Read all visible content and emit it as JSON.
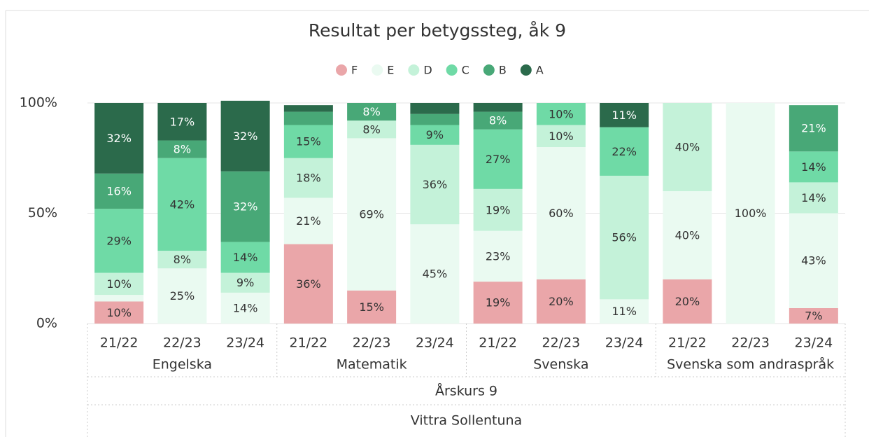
{
  "chart_data": {
    "type": "stacked_bar_100",
    "title": "Resultat per betygssteg, åk 9",
    "categories": [
      "21/22",
      "22/23",
      "23/24",
      "21/22",
      "22/23",
      "23/24",
      "21/22",
      "22/23",
      "23/24",
      "21/22",
      "22/23",
      "23/24"
    ],
    "groups": [
      {
        "label": "Engelska",
        "size": 3
      },
      {
        "label": "Matematik",
        "size": 3
      },
      {
        "label": "Svenska",
        "size": 3
      },
      {
        "label": "Svenska som andraspråk",
        "size": 3
      }
    ],
    "level3": "Årskurs 9",
    "level4": "Vittra Sollentuna",
    "series": [
      {
        "name": "F",
        "color": "#eaa6a9",
        "label_color": "#333333",
        "values": [
          10,
          null,
          null,
          36,
          15,
          null,
          19,
          20,
          null,
          20,
          null,
          7
        ],
        "value_labels": [
          "10%",
          null,
          null,
          "36%",
          "15%",
          null,
          "19%",
          "20%",
          null,
          "20%",
          null,
          "7%"
        ]
      },
      {
        "name": "E",
        "color": "#eafaf1",
        "label_color": "#333333",
        "values": [
          3,
          25,
          14,
          21,
          69,
          45,
          23,
          60,
          11,
          40,
          100,
          43
        ],
        "value_labels": [
          null,
          "25%",
          "14%",
          "21%",
          "69%",
          "45%",
          "23%",
          "60%",
          "11%",
          "40%",
          "100%",
          "43%"
        ]
      },
      {
        "name": "D",
        "color": "#c4f2d9",
        "label_color": "#333333",
        "values": [
          10,
          8,
          9,
          18,
          8,
          36,
          19,
          10,
          56,
          40,
          null,
          14
        ],
        "value_labels": [
          "10%",
          "8%",
          "9%",
          "18%",
          "8%",
          "36%",
          "19%",
          "10%",
          "56%",
          "40%",
          null,
          "14%"
        ]
      },
      {
        "name": "C",
        "color": "#6fdaa6",
        "label_color": "#333333",
        "values": [
          29,
          42,
          14,
          15,
          null,
          9,
          27,
          10,
          22,
          null,
          null,
          14
        ],
        "value_labels": [
          "29%",
          "42%",
          "14%",
          "15%",
          null,
          "9%",
          "27%",
          "10%",
          "22%",
          null,
          null,
          "14%"
        ]
      },
      {
        "name": "B",
        "color": "#48a877",
        "label_color": "#ffffff",
        "values": [
          16,
          8,
          32,
          6,
          8,
          5,
          8,
          null,
          null,
          null,
          null,
          21
        ],
        "value_labels": [
          "16%",
          "8%",
          "32%",
          null,
          "8%",
          null,
          "8%",
          null,
          null,
          null,
          null,
          "21%"
        ]
      },
      {
        "name": "A",
        "color": "#2b6a4b",
        "label_color": "#ffffff",
        "values": [
          32,
          17,
          32,
          3,
          null,
          5,
          4,
          null,
          11,
          null,
          null,
          null
        ],
        "value_labels": [
          "32%",
          "17%",
          "32%",
          null,
          null,
          null,
          null,
          null,
          "11%",
          null,
          null,
          null
        ]
      }
    ],
    "ylim": [
      0,
      100
    ],
    "yticks": [
      {
        "value": 0,
        "label": "0%"
      },
      {
        "value": 50,
        "label": "50%"
      },
      {
        "value": 100,
        "label": "100%"
      }
    ],
    "grid": true,
    "legend": "top"
  }
}
